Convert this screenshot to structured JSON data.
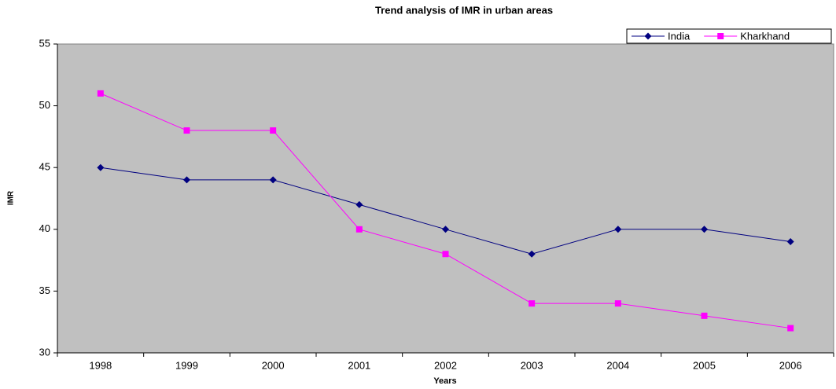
{
  "chart_data": {
    "type": "line",
    "title": "Trend analysis of IMR in urban areas",
    "x_label": "Years",
    "y_label": "IMR",
    "categories": [
      "1998",
      "1999",
      "2000",
      "2001",
      "2002",
      "2003",
      "2004",
      "2005",
      "2006"
    ],
    "series": [
      {
        "name": "India",
        "color": "#000080",
        "marker": "diamond",
        "values": [
          45,
          44,
          44,
          42,
          40,
          38,
          40,
          40,
          39
        ]
      },
      {
        "name": "Kharkhand",
        "color": "#ff00ff",
        "marker": "square",
        "values": [
          51,
          48,
          48,
          40,
          38,
          34,
          34,
          33,
          32
        ]
      }
    ],
    "ylim": [
      30,
      55
    ],
    "yticks": [
      30,
      35,
      40,
      45,
      50,
      55
    ],
    "legend": "top-right",
    "plot_background": "#c0c0c0"
  }
}
